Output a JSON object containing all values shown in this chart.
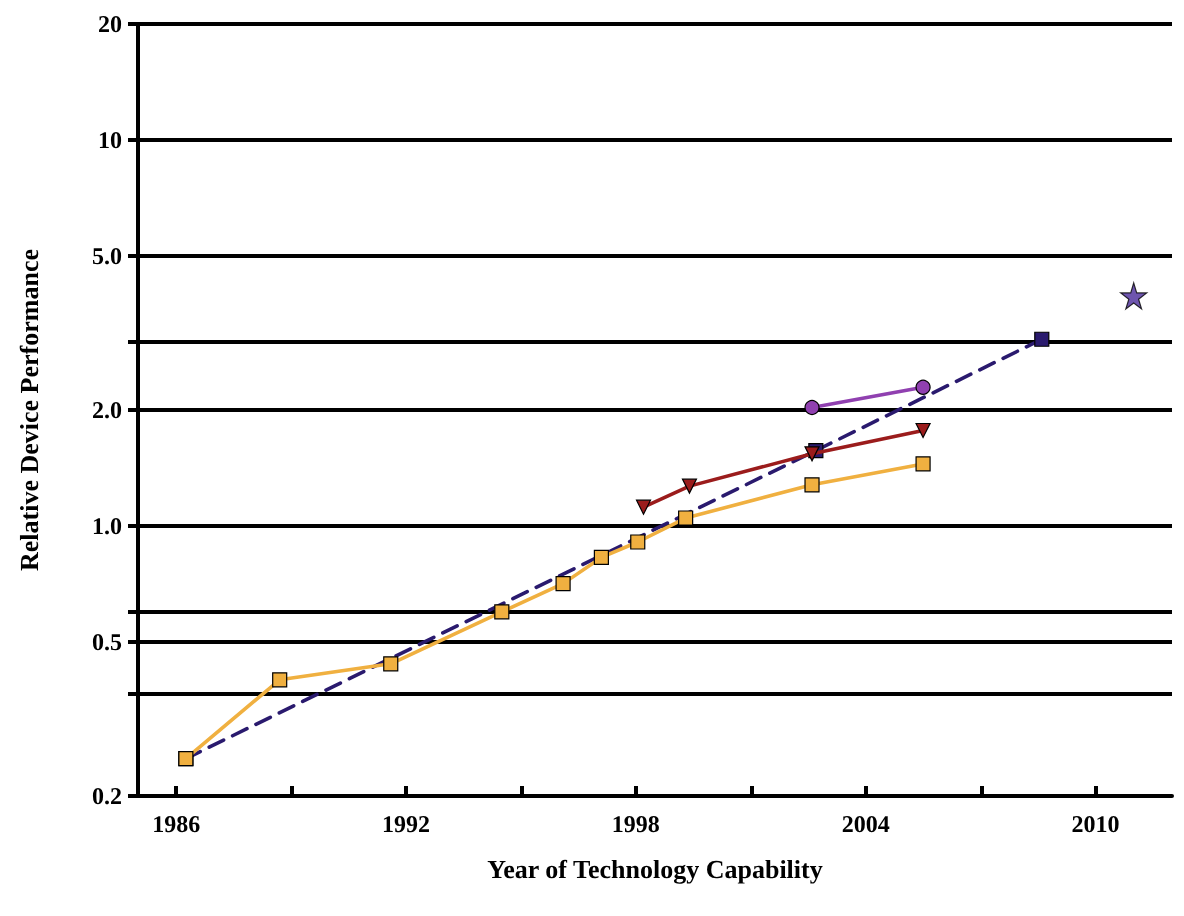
{
  "chart_data": {
    "type": "line",
    "xlabel": "Year of Technology Capability",
    "ylabel": "Relative Device Performance",
    "log": "y",
    "grid": "y",
    "xlim": [
      1985,
      2012
    ],
    "xticks": [
      1986,
      {
        "value": 1989,
        "label": null
      },
      1992,
      {
        "value": 1995,
        "label": null
      },
      1998,
      {
        "value": 2001,
        "label": null
      },
      2004,
      {
        "value": 2007,
        "label": null
      },
      2010
    ],
    "ylim": [
      0.2,
      20
    ],
    "yticks": [
      0.2,
      {
        "value": 0.37,
        "label": null
      },
      0.5,
      {
        "value": 0.6,
        "label": null
      },
      {
        "value": 1,
        "label": "1.0"
      },
      {
        "value": 2,
        "label": "2.0"
      },
      {
        "value": 3,
        "label": null
      },
      {
        "value": 5,
        "label": "5.0"
      },
      10,
      20
    ],
    "series": [
      {
        "color": "#f0b040",
        "marker": "square",
        "line_style": "solid",
        "x": [
          1986.25,
          1988.7,
          1991.6,
          1994.5,
          1996.1,
          1997.1,
          1998.05,
          1999.3,
          2002.6,
          2005.5
        ],
        "values": [
          0.25,
          0.4,
          0.44,
          0.6,
          0.71,
          0.83,
          0.91,
          1.05,
          1.28,
          1.45
        ]
      },
      {
        "color": "#2a1a6e",
        "marker": "square",
        "line_style": "dashed",
        "x": [
          1986.25,
          2002.7,
          2008.6
        ],
        "values": [
          0.25,
          1.57,
          3.05
        ]
      },
      {
        "color": "#9b1c1c",
        "marker": "triangle",
        "line_style": "solid",
        "x": [
          1998.2,
          1999.4,
          2002.6,
          2005.5
        ],
        "values": [
          1.12,
          1.27,
          1.54,
          1.77
        ]
      },
      {
        "color": "#9040b0",
        "marker": "circle",
        "line_style": "solid",
        "x": [
          2002.6,
          2005.5
        ],
        "values": [
          2.03,
          2.29
        ]
      },
      {
        "type": "scatter",
        "color": "#4a2a9a",
        "marker": "star",
        "x": [
          2011
        ],
        "values": [
          3.95
        ]
      }
    ]
  }
}
